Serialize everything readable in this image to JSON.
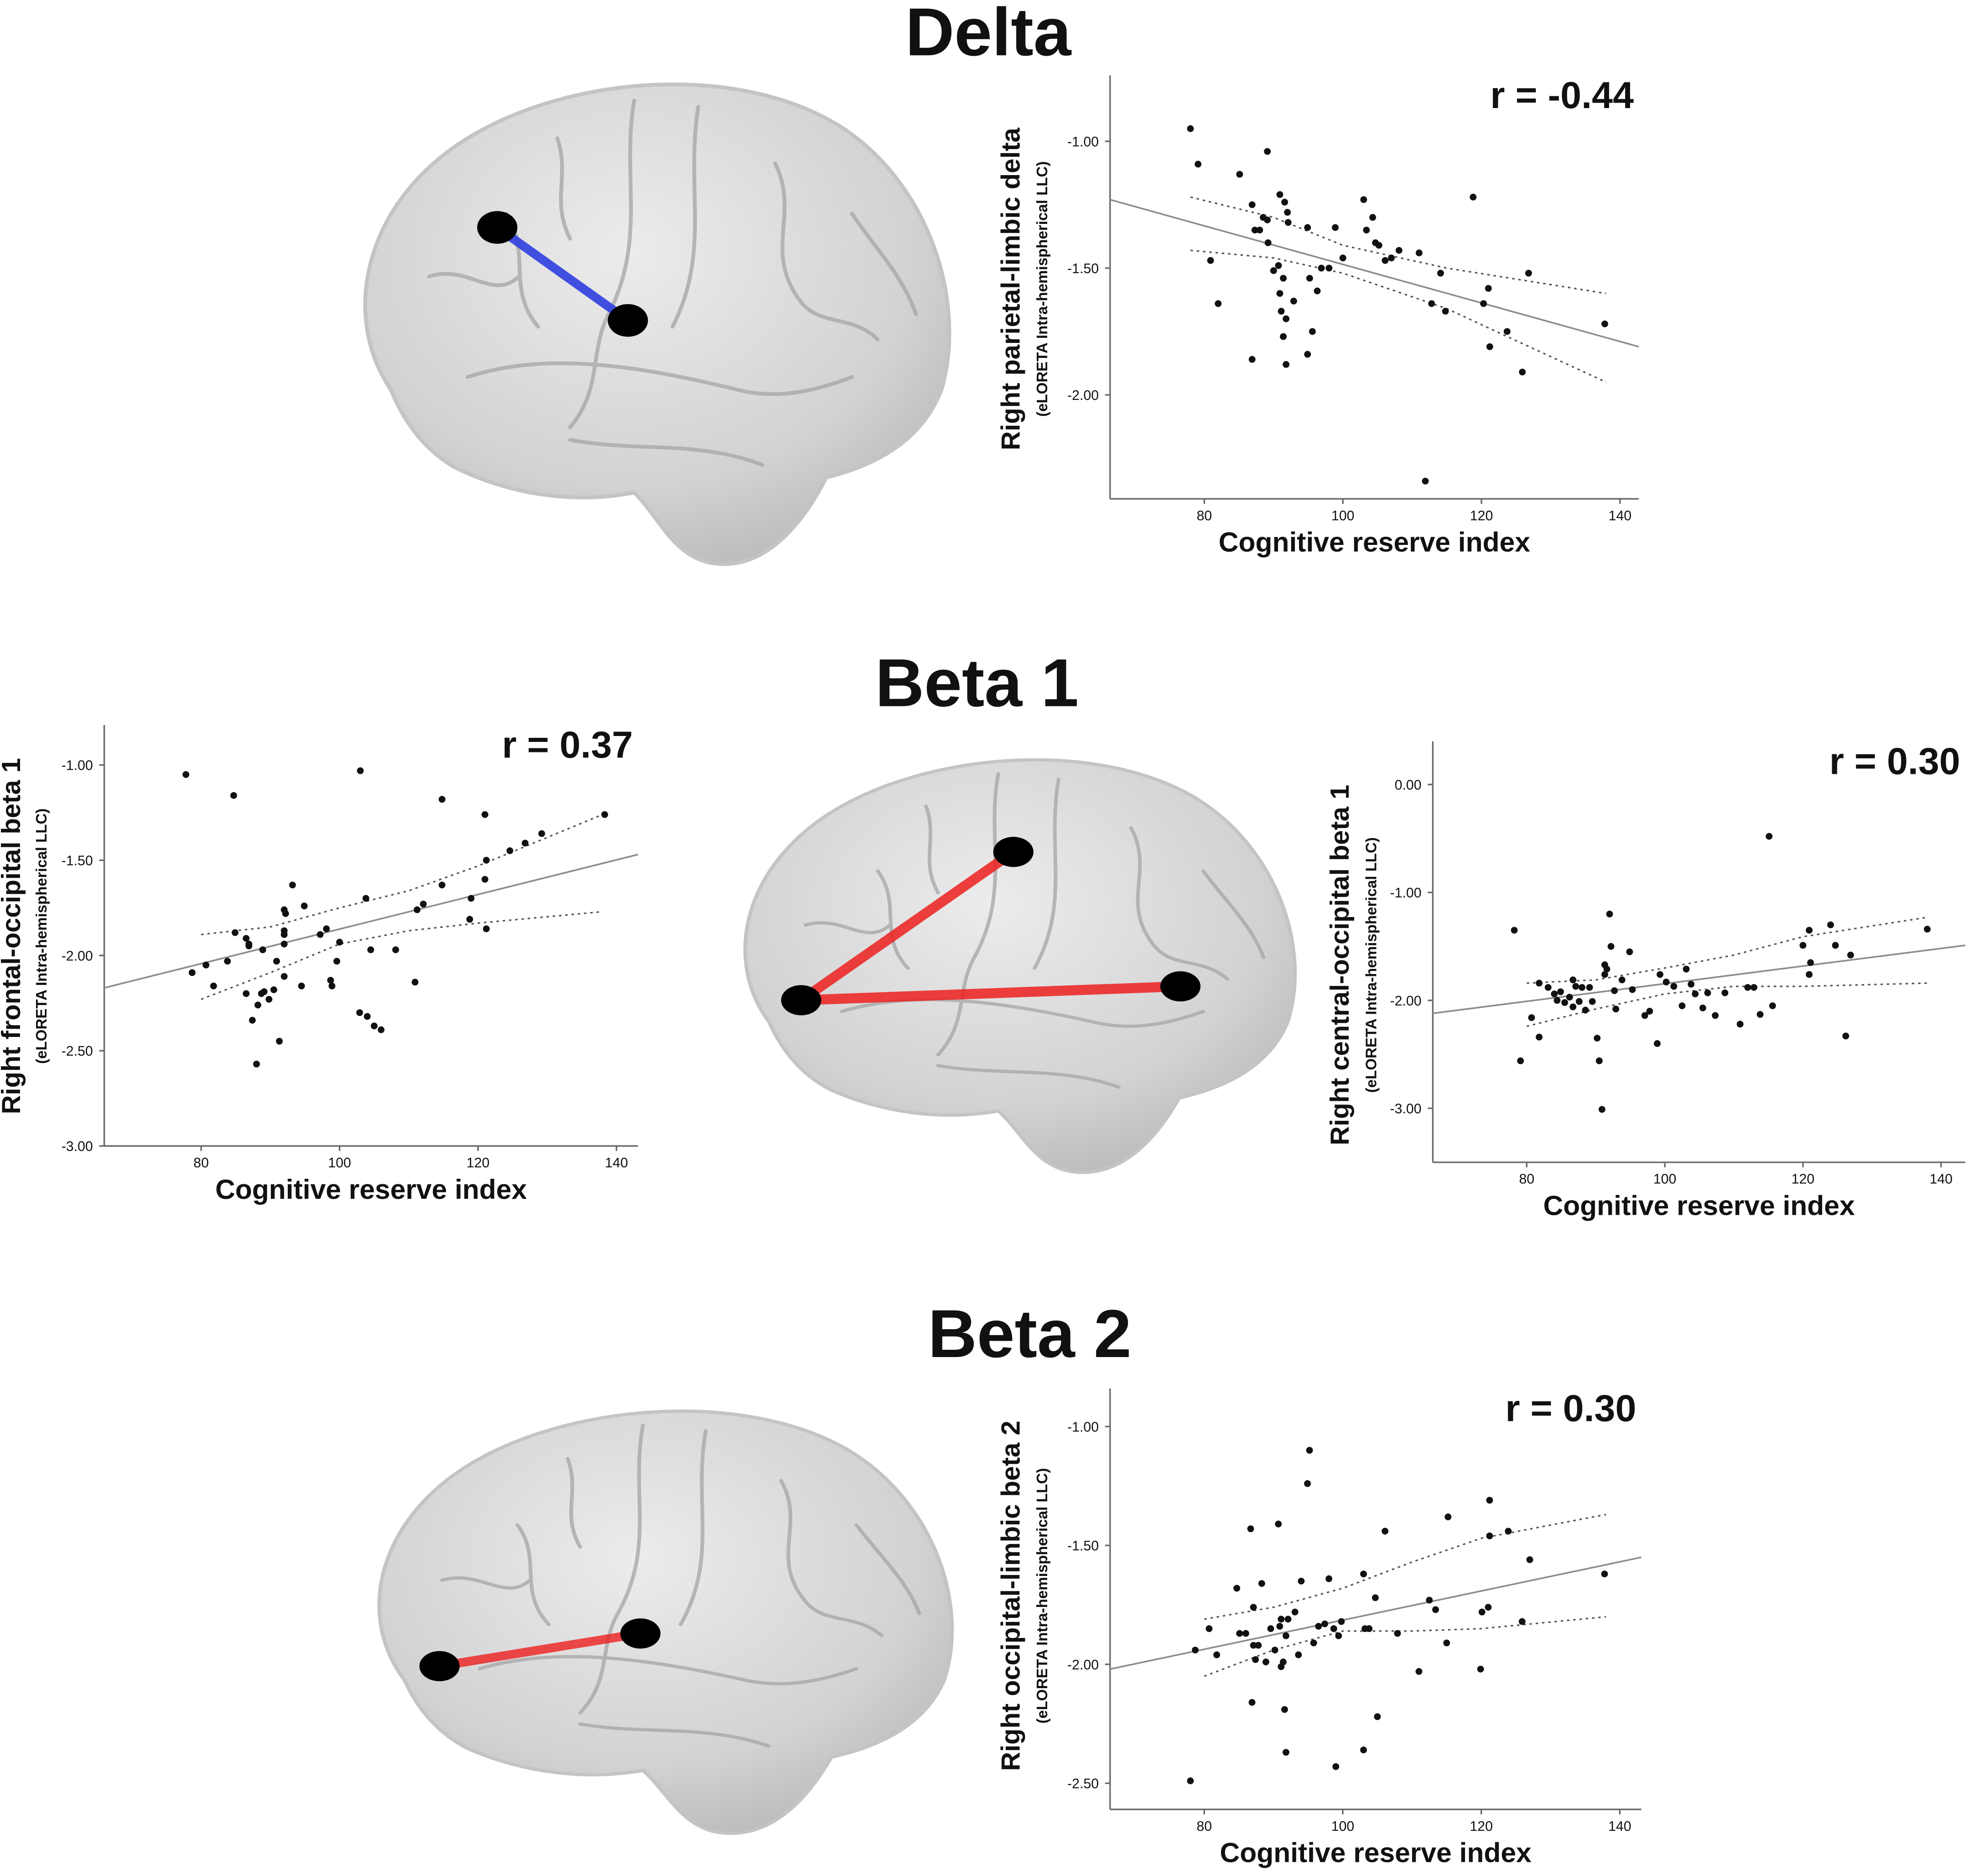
{
  "panel_titles": [
    "Delta",
    "Beta 1",
    "Beta 2"
  ],
  "chart_data": [
    {
      "type": "scatter",
      "annotation": "r = -0.44",
      "ylabel": "Right parietal-limbic delta",
      "ylabel_sub": "(eLORETA Intra-hemispherical LLC)",
      "xlabel": "Cognitive reserve index",
      "color": "#111111",
      "xlim": [
        66.4,
        142.7
      ],
      "xticks": [
        80,
        100,
        120,
        140
      ],
      "ylim": [
        -2.41,
        -0.74
      ],
      "yticks": [
        {
          "value": -1,
          "label": "-1.00"
        },
        {
          "value": -1.5,
          "label": "-1.50"
        },
        {
          "value": -2,
          "label": "-2.00"
        }
      ],
      "x": [
        78.0,
        79.1,
        89.1,
        85.1,
        80.9,
        82.0,
        86.9,
        87.3,
        88.0,
        88.5,
        90.9,
        91.6,
        92.0,
        92.1,
        89.1,
        89.2,
        90.0,
        90.7,
        90.9,
        91.4,
        91.1,
        91.8,
        91.4,
        91.8,
        86.9,
        94.9,
        95.2,
        96.3,
        96.9,
        98.0,
        98.9,
        100.0,
        103.0,
        103.4,
        104.3,
        104.7,
        105.2,
        106.1,
        107.0,
        108.1,
        111.0,
        112.8,
        114.1,
        114.8,
        118.8,
        120.3,
        121.0,
        121.2,
        123.7,
        125.9,
        126.8,
        137.8,
        111.9,
        95.6,
        92.9,
        94.9
      ],
      "values": [
        -0.95,
        -1.09,
        -1.04,
        -1.13,
        -1.47,
        -1.64,
        -1.25,
        -1.35,
        -1.35,
        -1.3,
        -1.21,
        -1.24,
        -1.28,
        -1.32,
        -1.31,
        -1.4,
        -1.51,
        -1.49,
        -1.6,
        -1.54,
        -1.67,
        -1.7,
        -1.77,
        -1.88,
        -1.86,
        -1.34,
        -1.54,
        -1.59,
        -1.5,
        -1.5,
        -1.34,
        -1.46,
        -1.23,
        -1.35,
        -1.3,
        -1.4,
        -1.41,
        -1.47,
        -1.46,
        -1.43,
        -1.44,
        -1.64,
        -1.52,
        -1.67,
        -1.22,
        -1.64,
        -1.58,
        -1.81,
        -1.75,
        -1.91,
        -1.52,
        -1.72,
        -2.34,
        -1.75,
        -1.63,
        -1.84
      ],
      "lines": [
        {
          "x": [
            66.4,
            142.7
          ],
          "values": [
            -1.23,
            -1.81
          ],
          "color": "#8c8c8c",
          "dashed": false
        },
        {
          "x": [
            78,
            90,
            100,
            115,
            138
          ],
          "values": [
            -1.22,
            -1.3,
            -1.41,
            -1.5,
            -1.6
          ],
          "color": "#555555",
          "dashed": true
        },
        {
          "x": [
            78,
            90,
            100,
            115,
            138
          ],
          "values": [
            -1.43,
            -1.46,
            -1.52,
            -1.66,
            -1.95
          ],
          "color": "#555555",
          "dashed": true
        }
      ]
    },
    {
      "type": "scatter",
      "annotation": "r = 0.37",
      "ylabel": "Right frontal-occipital beta 1",
      "ylabel_sub": "(eLORETA Intra-hemispherical LLC)",
      "xlabel": "Cognitive reserve index",
      "color": "#111111",
      "xlim": [
        66.0,
        143.1
      ],
      "xticks": [
        80,
        100,
        120,
        140
      ],
      "ylim": [
        -3.0,
        -0.79
      ],
      "yticks": [
        {
          "value": -1,
          "label": "-1.00"
        },
        {
          "value": -1.5,
          "label": "-1.50"
        },
        {
          "value": -2,
          "label": "-2.00"
        },
        {
          "value": -2.5,
          "label": "-2.50"
        },
        {
          "value": -3,
          "label": "-3.00"
        }
      ],
      "x": [
        77.8,
        84.7,
        103.0,
        114.8,
        121.0,
        138.3,
        129.2,
        126.8,
        124.6,
        121.2,
        121.0,
        119.0,
        121.2,
        118.8,
        114.8,
        112.1,
        111.2,
        103.8,
        98.1,
        97.2,
        100.0,
        99.6,
        93.2,
        94.9,
        92.2,
        92.0,
        92.0,
        92.0,
        92.0,
        86.5,
        86.9,
        86.9,
        84.9,
        83.8,
        80.7,
        78.7,
        81.8,
        88.9,
        90.9,
        92.0,
        90.5,
        89.8,
        88.7,
        86.5,
        88.2,
        87.4,
        89.1,
        91.3,
        88.0,
        94.5,
        98.9,
        102.9,
        104.0,
        105.0,
        106.0,
        110.9,
        108.1,
        104.5,
        98.7
      ],
      "values": [
        -1.05,
        -1.16,
        -1.03,
        -1.18,
        -1.26,
        -1.26,
        -1.36,
        -1.41,
        -1.45,
        -1.5,
        -1.6,
        -1.7,
        -1.86,
        -1.81,
        -1.63,
        -1.73,
        -1.76,
        -1.7,
        -1.86,
        -1.89,
        -1.93,
        -2.03,
        -1.63,
        -1.74,
        -1.78,
        -1.87,
        -1.89,
        -1.94,
        -1.76,
        -1.91,
        -1.94,
        -1.95,
        -1.88,
        -2.03,
        -2.05,
        -2.09,
        -2.16,
        -1.97,
        -2.03,
        -2.11,
        -2.18,
        -2.23,
        -2.2,
        -2.2,
        -2.26,
        -2.34,
        -2.19,
        -2.45,
        -2.57,
        -2.16,
        -2.16,
        -2.3,
        -2.32,
        -2.37,
        -2.39,
        -2.14,
        -1.97,
        -1.97,
        -2.13
      ],
      "lines": [
        {
          "x": [
            66.0,
            143.1
          ],
          "values": [
            -2.17,
            -1.47
          ],
          "color": "#8c8c8c",
          "dashed": false
        },
        {
          "x": [
            80,
            90,
            100,
            110,
            120,
            138
          ],
          "values": [
            -1.89,
            -1.85,
            -1.75,
            -1.66,
            -1.53,
            -1.26
          ],
          "color": "#555555",
          "dashed": true
        },
        {
          "x": [
            80,
            90,
            100,
            110,
            120,
            138
          ],
          "values": [
            -2.23,
            -2.09,
            -1.94,
            -1.87,
            -1.83,
            -1.77
          ],
          "color": "#555555",
          "dashed": true
        }
      ]
    },
    {
      "type": "scatter",
      "annotation": "r = 0.30",
      "ylabel": "Right central-occipital beta 1",
      "ylabel_sub": "(eLORETA Intra-hemispherical LLC)",
      "xlabel": "Cognitive reserve index",
      "color": "#111111",
      "xlim": [
        66.4,
        143.5
      ],
      "xticks": [
        80,
        100,
        120,
        140
      ],
      "ylim": [
        -3.5,
        0.4
      ],
      "yticks": [
        {
          "value": 0,
          "label": "0.00"
        },
        {
          "value": -1,
          "label": "-1.00"
        },
        {
          "value": -2,
          "label": "-2.00"
        },
        {
          "value": -3,
          "label": "-3.00"
        }
      ],
      "x": [
        78.2,
        79.1,
        80.7,
        81.8,
        81.8,
        83.1,
        84.0,
        84.4,
        84.9,
        85.5,
        86.2,
        86.7,
        87.1,
        86.7,
        87.6,
        88.0,
        88.5,
        89.1,
        89.5,
        90.2,
        90.5,
        90.9,
        91.3,
        91.3,
        91.6,
        92.0,
        92.2,
        92.7,
        92.9,
        93.8,
        94.9,
        95.3,
        97.1,
        97.8,
        98.9,
        99.3,
        100.2,
        101.3,
        102.5,
        103.1,
        103.8,
        104.4,
        105.5,
        106.2,
        107.3,
        108.7,
        110.9,
        112.0,
        112.9,
        113.8,
        115.1,
        115.6,
        120.0,
        120.9,
        120.9,
        121.1,
        124.0,
        124.7,
        126.2,
        126.9,
        138.0
      ],
      "values": [
        -1.35,
        -2.56,
        -2.16,
        -2.34,
        -1.84,
        -1.88,
        -1.94,
        -2.0,
        -1.92,
        -2.02,
        -1.97,
        -2.06,
        -1.87,
        -1.81,
        -2.01,
        -1.88,
        -2.09,
        -1.88,
        -2.01,
        -2.35,
        -2.56,
        -3.01,
        -1.76,
        -1.67,
        -1.71,
        -1.2,
        -1.5,
        -1.91,
        -2.08,
        -1.81,
        -1.55,
        -1.9,
        -2.14,
        -2.1,
        -2.4,
        -1.76,
        -1.83,
        -1.87,
        -2.05,
        -1.71,
        -1.85,
        -1.94,
        -2.07,
        -1.93,
        -2.14,
        -1.93,
        -2.22,
        -1.88,
        -1.88,
        -2.13,
        -0.48,
        -2.05,
        -1.49,
        -1.35,
        -1.76,
        -1.65,
        -1.3,
        -1.49,
        -2.33,
        -1.58,
        -1.34
      ],
      "lines": [
        {
          "x": [
            66.4,
            143.5
          ],
          "values": [
            -2.12,
            -1.49
          ],
          "color": "#8c8c8c",
          "dashed": false
        },
        {
          "x": [
            80,
            90,
            100,
            110,
            120,
            138
          ],
          "values": [
            -1.84,
            -1.81,
            -1.7,
            -1.58,
            -1.41,
            -1.23
          ],
          "color": "#555555",
          "dashed": true
        },
        {
          "x": [
            80,
            90,
            100,
            110,
            120,
            138
          ],
          "values": [
            -2.24,
            -2.08,
            -1.94,
            -1.87,
            -1.87,
            -1.84
          ],
          "color": "#555555",
          "dashed": true
        }
      ]
    },
    {
      "type": "scatter",
      "annotation": "r = 0.30",
      "ylabel": "Right occipital-limbic beta 2",
      "ylabel_sub": "(eLORETA Intra-hemispherical LLC)",
      "xlabel": "Cognitive reserve index",
      "color": "#111111",
      "xlim": [
        66.4,
        143.1
      ],
      "xticks": [
        80,
        100,
        120,
        140
      ],
      "ylim": [
        -2.61,
        -0.84
      ],
      "yticks": [
        {
          "value": -1,
          "label": "-1.00"
        },
        {
          "value": -1.5,
          "label": "-1.50"
        },
        {
          "value": -2,
          "label": "-2.00"
        },
        {
          "value": -2.5,
          "label": "-2.50"
        }
      ],
      "x": [
        78.0,
        78.7,
        80.7,
        81.8,
        84.7,
        85.1,
        86.0,
        86.7,
        86.9,
        87.1,
        87.1,
        87.4,
        87.8,
        88.3,
        88.9,
        89.6,
        90.2,
        90.7,
        90.9,
        91.1,
        91.1,
        91.4,
        91.6,
        91.8,
        91.8,
        92.1,
        93.1,
        93.6,
        94.0,
        94.9,
        95.2,
        95.8,
        96.5,
        97.4,
        98.0,
        98.7,
        99.4,
        99.8,
        99.0,
        103.0,
        103.2,
        103.8,
        105.0,
        104.7,
        106.1,
        107.9,
        111.0,
        112.5,
        113.4,
        115.0,
        115.2,
        119.9,
        120.1,
        121.0,
        121.2,
        121.2,
        123.9,
        125.9,
        127.0,
        137.8,
        103.0
      ],
      "values": [
        -2.49,
        -1.94,
        -1.85,
        -1.96,
        -1.68,
        -1.87,
        -1.87,
        -1.43,
        -2.16,
        -1.76,
        -1.92,
        -1.98,
        -1.92,
        -1.66,
        -1.99,
        -1.85,
        -1.94,
        -1.41,
        -1.84,
        -1.81,
        -2.01,
        -1.99,
        -2.19,
        -2.37,
        -1.88,
        -1.81,
        -1.78,
        -1.96,
        -1.65,
        -1.24,
        -1.1,
        -1.91,
        -1.84,
        -1.83,
        -1.64,
        -1.85,
        -1.88,
        -1.82,
        -2.43,
        -1.62,
        -1.85,
        -1.85,
        -2.22,
        -1.72,
        -1.44,
        -1.87,
        -2.03,
        -1.73,
        -1.77,
        -1.91,
        -1.38,
        -2.02,
        -1.78,
        -1.76,
        -1.46,
        -1.31,
        -1.44,
        -1.82,
        -1.56,
        -1.62,
        -2.36
      ],
      "lines": [
        {
          "x": [
            66.4,
            143.1
          ],
          "values": [
            -2.02,
            -1.55
          ],
          "color": "#8c8c8c",
          "dashed": false
        },
        {
          "x": [
            80,
            90,
            100,
            110,
            120,
            138
          ],
          "values": [
            -1.81,
            -1.76,
            -1.68,
            -1.57,
            -1.47,
            -1.37
          ],
          "color": "#555555",
          "dashed": true
        },
        {
          "x": [
            80,
            90,
            100,
            110,
            120,
            138
          ],
          "values": [
            -2.05,
            -1.94,
            -1.86,
            -1.86,
            -1.85,
            -1.8
          ],
          "color": "#555555",
          "dashed": true
        }
      ]
    }
  ]
}
